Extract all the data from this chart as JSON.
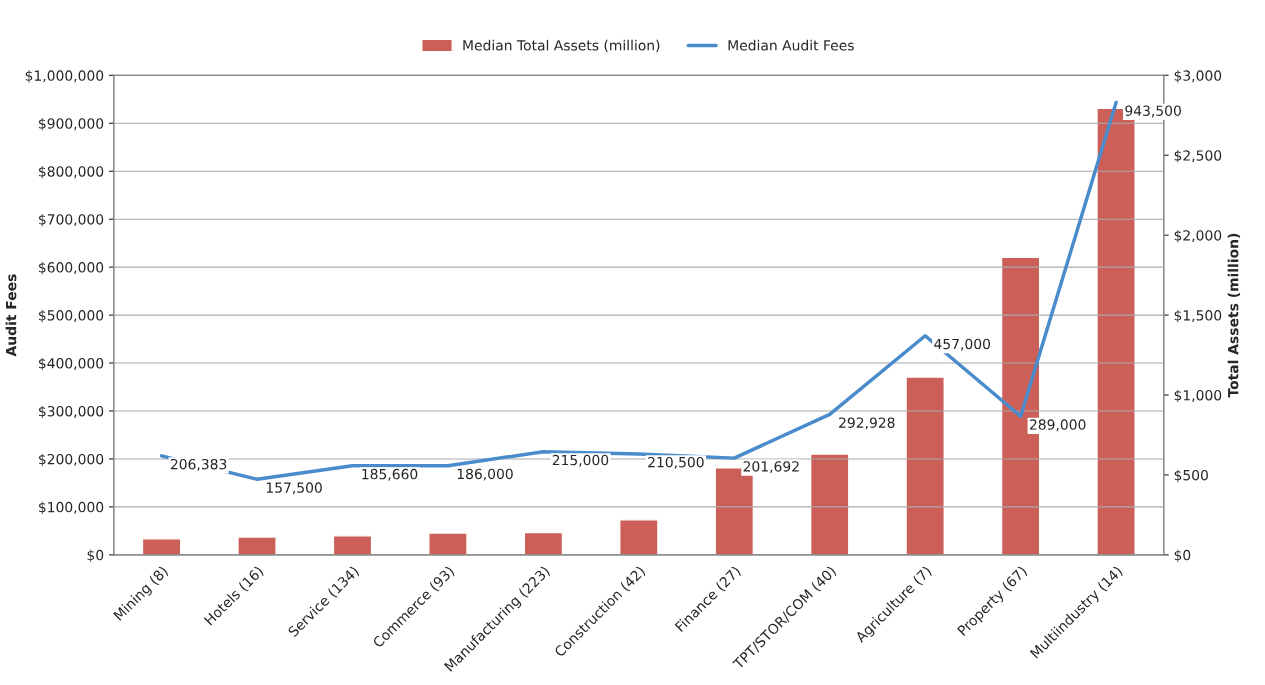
{
  "chart_data": {
    "type": "bar",
    "ylabel": "Audit Fees",
    "y2label": "Total Assets (million)",
    "categories": [
      "Mining (8)",
      "Hotels (16)",
      "Service (134)",
      "Commerce (93)",
      "Manufacturing (223)",
      "Construction (42)",
      "Finance (27)",
      "TPT/STOR/COM (40)",
      "Agriculture (7)",
      "Property (67)",
      "Multiindustry (14)"
    ],
    "series": [
      {
        "name": "Median Total Assets (million)",
        "axis": "y2",
        "color": "#cd5f59",
        "values": [
          100,
          112,
          119,
          137,
          140,
          219,
          544,
          631,
          1112,
          1862,
          2794
        ]
      },
      {
        "name": "Median Audit Fees",
        "type": "line",
        "axis": "y",
        "color": "#4a8bcc",
        "values": [
          206383,
          157500,
          185660,
          186000,
          215000,
          210500,
          201692,
          292928,
          457000,
          289000,
          943500
        ],
        "value_labels": [
          "206,383",
          "157,500",
          "185,660",
          "186,000",
          "215,000",
          "210,500",
          "201,692",
          "292,928",
          "457,000",
          "289,000",
          "943,500"
        ]
      }
    ],
    "ylim": [
      0,
      1000000
    ],
    "yticks": [
      {
        "value": 0,
        "label": "$0"
      },
      {
        "value": 100000,
        "label": "$100,000"
      },
      {
        "value": 200000,
        "label": "$200,000"
      },
      {
        "value": 300000,
        "label": "$300,000"
      },
      {
        "value": 400000,
        "label": "$400,000"
      },
      {
        "value": 500000,
        "label": "$500,000"
      },
      {
        "value": 600000,
        "label": "$600,000"
      },
      {
        "value": 700000,
        "label": "$700,000"
      },
      {
        "value": 800000,
        "label": "$800,000"
      },
      {
        "value": 900000,
        "label": "$900,000"
      },
      {
        "value": 1000000,
        "label": "$1,000,000"
      }
    ],
    "y2lim": [
      0,
      3000
    ],
    "y2ticks": [
      {
        "value": 0,
        "label": "$0"
      },
      {
        "value": 500,
        "label": "$500"
      },
      {
        "value": 1000,
        "label": "$1,000"
      },
      {
        "value": 1500,
        "label": "$1,500"
      },
      {
        "value": 2000,
        "label": "$2,000"
      },
      {
        "value": 2500,
        "label": "$2,500"
      },
      {
        "value": 3000,
        "label": "$3,000"
      }
    ],
    "grid": "y",
    "legend": "top",
    "marker": "none",
    "line_style": "solid"
  }
}
